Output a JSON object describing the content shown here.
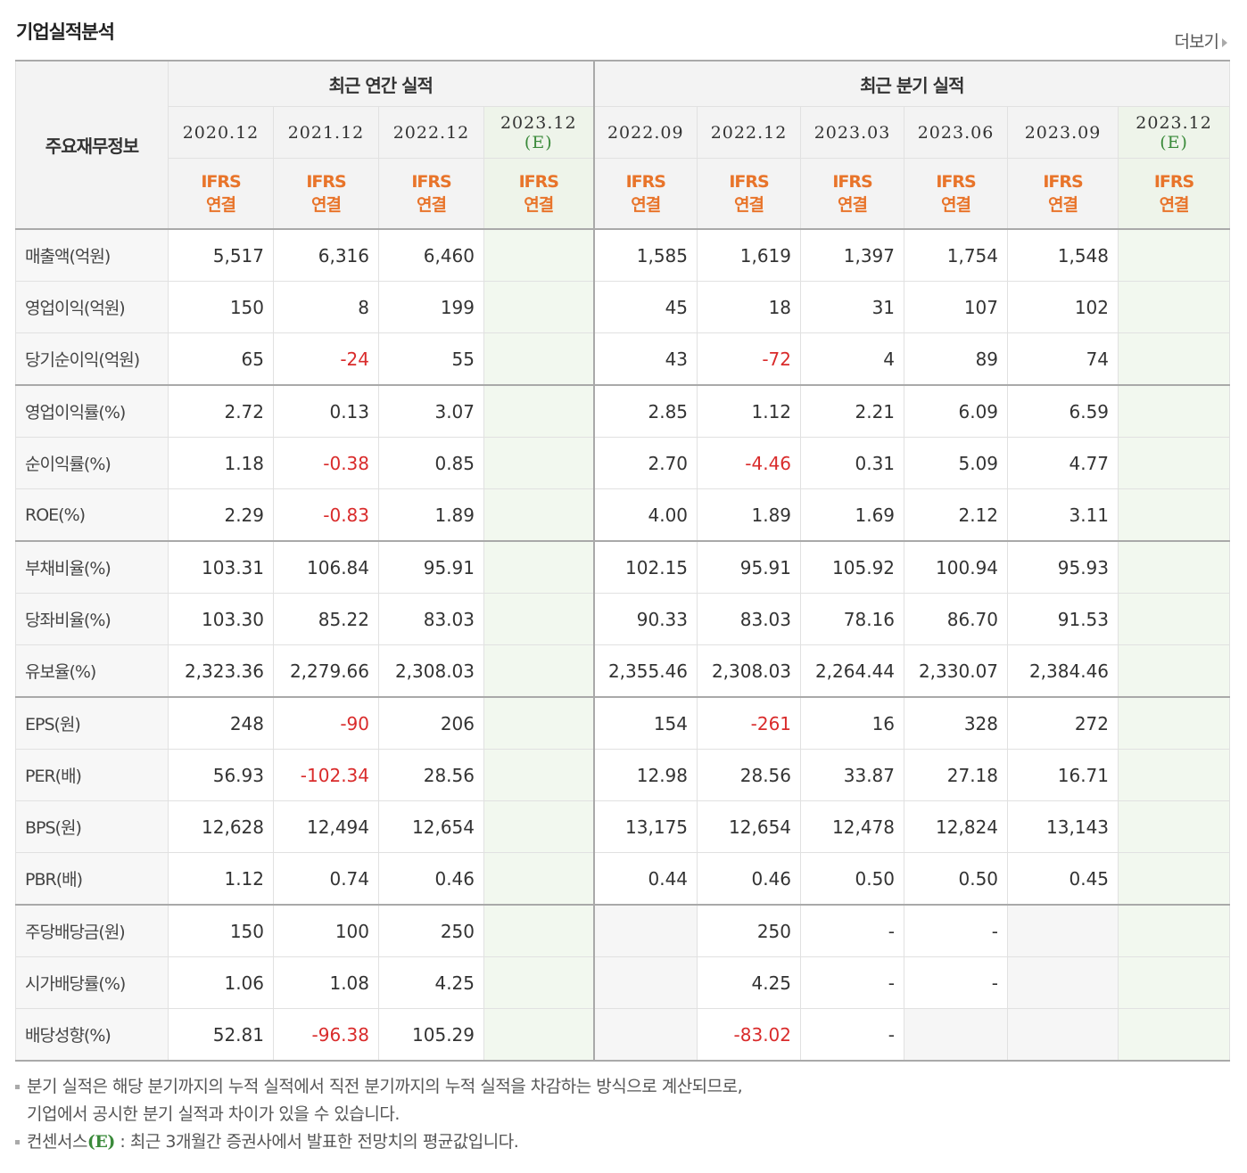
{
  "title": "기업실적분석",
  "more_label": "더보기",
  "header": {
    "main_label": "주요재무정보",
    "annual_label": "최근 연간 실적",
    "quarter_label": "최근 분기 실적",
    "ifrs_top": "IFRS",
    "ifrs_bottom": "연결",
    "annual_dates": [
      "2020.12",
      "2021.12",
      "2022.12",
      "2023.12"
    ],
    "quarter_dates": [
      "2022.09",
      "2022.12",
      "2023.03",
      "2023.06",
      "2023.09",
      "2023.12"
    ],
    "estimate_mark": "(E)"
  },
  "rows": [
    {
      "label": "매출액(억원)",
      "values": [
        "5,517",
        "6,316",
        "6,460",
        "",
        "1,585",
        "1,619",
        "1,397",
        "1,754",
        "1,548",
        ""
      ]
    },
    {
      "label": "영업이익(억원)",
      "values": [
        "150",
        "8",
        "199",
        "",
        "45",
        "18",
        "31",
        "107",
        "102",
        ""
      ]
    },
    {
      "label": "당기순이익(억원)",
      "values": [
        "65",
        "-24",
        "55",
        "",
        "43",
        "-72",
        "4",
        "89",
        "74",
        ""
      ]
    },
    {
      "label": "영업이익률(%)",
      "values": [
        "2.72",
        "0.13",
        "3.07",
        "",
        "2.85",
        "1.12",
        "2.21",
        "6.09",
        "6.59",
        ""
      ]
    },
    {
      "label": "순이익률(%)",
      "values": [
        "1.18",
        "-0.38",
        "0.85",
        "",
        "2.70",
        "-4.46",
        "0.31",
        "5.09",
        "4.77",
        ""
      ]
    },
    {
      "label": "ROE(%)",
      "values": [
        "2.29",
        "-0.83",
        "1.89",
        "",
        "4.00",
        "1.89",
        "1.69",
        "2.12",
        "3.11",
        ""
      ]
    },
    {
      "label": "부채비율(%)",
      "values": [
        "103.31",
        "106.84",
        "95.91",
        "",
        "102.15",
        "95.91",
        "105.92",
        "100.94",
        "95.93",
        ""
      ]
    },
    {
      "label": "당좌비율(%)",
      "values": [
        "103.30",
        "85.22",
        "83.03",
        "",
        "90.33",
        "83.03",
        "78.16",
        "86.70",
        "91.53",
        ""
      ]
    },
    {
      "label": "유보율(%)",
      "values": [
        "2,323.36",
        "2,279.66",
        "2,308.03",
        "",
        "2,355.46",
        "2,308.03",
        "2,264.44",
        "2,330.07",
        "2,384.46",
        ""
      ]
    },
    {
      "label": "EPS(원)",
      "values": [
        "248",
        "-90",
        "206",
        "",
        "154",
        "-261",
        "16",
        "328",
        "272",
        ""
      ]
    },
    {
      "label": "PER(배)",
      "values": [
        "56.93",
        "-102.34",
        "28.56",
        "",
        "12.98",
        "28.56",
        "33.87",
        "27.18",
        "16.71",
        ""
      ]
    },
    {
      "label": "BPS(원)",
      "values": [
        "12,628",
        "12,494",
        "12,654",
        "",
        "13,175",
        "12,654",
        "12,478",
        "12,824",
        "13,143",
        ""
      ]
    },
    {
      "label": "PBR(배)",
      "values": [
        "1.12",
        "0.74",
        "0.46",
        "",
        "0.44",
        "0.46",
        "0.50",
        "0.50",
        "0.45",
        ""
      ]
    },
    {
      "label": "주당배당금(원)",
      "values": [
        "150",
        "100",
        "250",
        "",
        "",
        "250",
        "-",
        "-",
        "",
        ""
      ]
    },
    {
      "label": "시가배당률(%)",
      "values": [
        "1.06",
        "1.08",
        "4.25",
        "",
        "",
        "4.25",
        "-",
        "-",
        "",
        ""
      ]
    },
    {
      "label": "배당성향(%)",
      "values": [
        "52.81",
        "-96.38",
        "105.29",
        "",
        "",
        "-83.02",
        "-",
        "",
        "",
        ""
      ]
    }
  ],
  "notes": {
    "line1": "분기 실적은 해당 분기까지의 누적 실적에서 직전 분기까지의 누적 실적을 차감하는 방식으로 계산되므로,",
    "line2": "기업에서 공시한 분기 실적과 차이가 있을 수 있습니다.",
    "line3_pre": "컨센서스",
    "line3_mark": "(E)",
    "line3_post": " : 최근 3개월간 증권사에서 발표한 전망치의 평균값입니다."
  }
}
